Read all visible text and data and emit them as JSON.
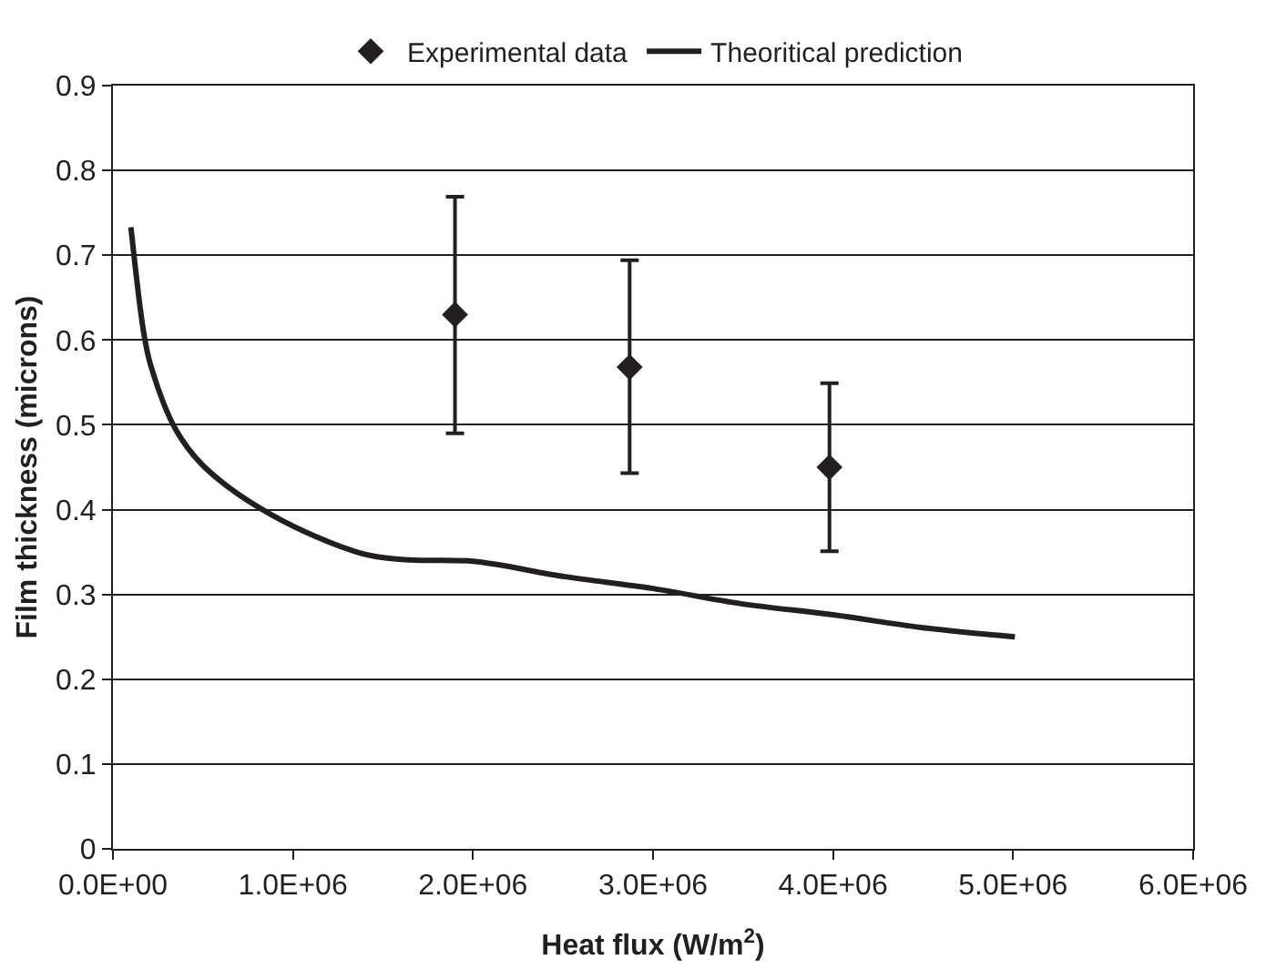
{
  "chart_data": {
    "type": "scatter",
    "xlabel": "Heat flux (W/m$^{2}$)",
    "ylabel": "Film thickness (microns)",
    "xlim": [
      0,
      6000000
    ],
    "xticks": [
      {
        "value": 0,
        "label": "0.0E+00"
      },
      {
        "value": 1000000,
        "label": "1.0E+06"
      },
      {
        "value": 2000000,
        "label": "2.0E+06"
      },
      {
        "value": 3000000,
        "label": "3.0E+06"
      },
      {
        "value": 4000000,
        "label": "4.0E+06"
      },
      {
        "value": 5000000,
        "label": "5.0E+06"
      },
      {
        "value": 6000000,
        "label": "6.0E+06"
      }
    ],
    "ylim": [
      0,
      0.9
    ],
    "yticks": [
      0,
      0.1,
      0.2,
      0.3,
      0.4,
      0.5,
      0.6,
      0.7,
      0.8,
      0.9
    ],
    "grid": "y",
    "legend": "top",
    "series": [
      {
        "name": "Experimental data",
        "marker": "diamond",
        "color": "#231f20",
        "x": [
          1900000,
          2870000,
          3980000
        ],
        "values": [
          0.63,
          0.568,
          0.45
        ],
        "errors": [
          [
            0.49,
            0.769
          ],
          [
            0.443,
            0.694
          ],
          [
            0.351,
            0.549
          ]
        ]
      },
      {
        "name": "Theoritical prediction",
        "type": "line",
        "marker": "none",
        "line_style": "solid",
        "color": "#231f20",
        "x": [
          100000,
          170000,
          210000,
          350000,
          510000,
          880000,
          1370000,
          1620000,
          2000000,
          2510000,
          3000000,
          3490000,
          4000000,
          4490000,
          5010000
        ],
        "values": [
          0.733,
          0.61,
          0.57,
          0.494,
          0.45,
          0.394,
          0.349,
          0.341,
          0.339,
          0.321,
          0.307,
          0.289,
          0.276,
          0.261,
          0.25
        ]
      }
    ]
  }
}
